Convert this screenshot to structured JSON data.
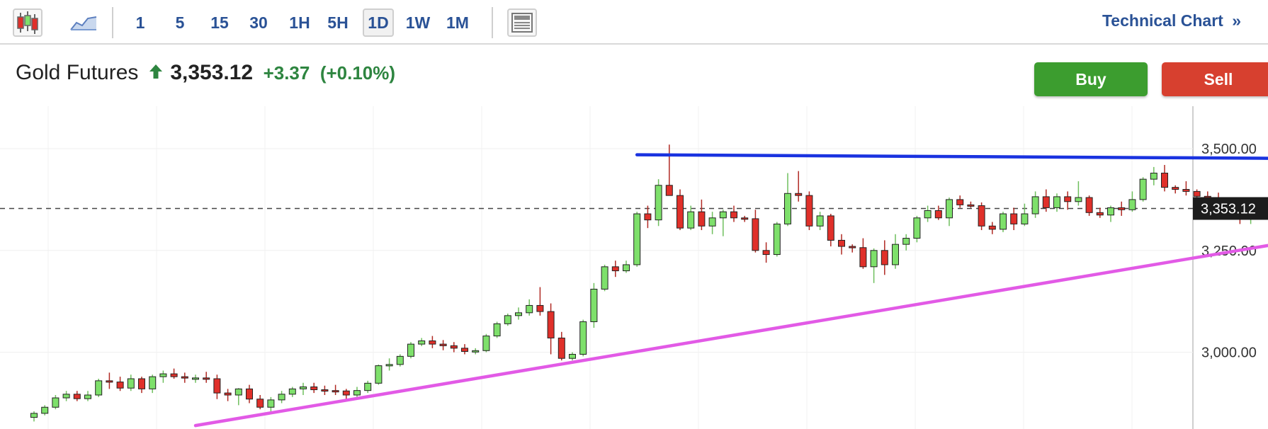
{
  "toolbar": {
    "icons": [
      "candlestick-chart-icon",
      "area-chart-icon",
      "layout-icon"
    ],
    "timeframes": [
      "1",
      "5",
      "15",
      "30",
      "1H",
      "5H",
      "1D",
      "1W",
      "1M"
    ],
    "active_timeframe": "1D",
    "technical_link": "Technical Chart",
    "technical_link_icon": "double-chevron-right-icon"
  },
  "quote": {
    "name": "Gold Futures",
    "direction_icon": "up-arrow-icon",
    "price": "3,353.12",
    "change": "+3.37",
    "change_pct": "(+0.10%)"
  },
  "actions": {
    "buy": "Buy",
    "sell": "Sell"
  },
  "colors": {
    "link": "#2a5296",
    "up": "#2e8540",
    "buy": "#3c9d2f",
    "sell": "#d7402f",
    "candle_up": "#7ee06b",
    "candle_down": "#e0302a",
    "resistance": "#1a33e0",
    "support": "#e25ae6"
  },
  "chart_data": {
    "type": "candlestick",
    "y_ticks": [
      "3,500.00",
      "3,250.00",
      "3,000.00"
    ],
    "y_tick_values": [
      3500,
      3250,
      3000
    ],
    "last_price_label": "3,353.12",
    "last_price": 3353.12,
    "candles": [
      [
        2840,
        2855,
        2830,
        2850
      ],
      [
        2850,
        2870,
        2845,
        2865
      ],
      [
        2865,
        2895,
        2860,
        2888
      ],
      [
        2888,
        2905,
        2880,
        2897
      ],
      [
        2897,
        2905,
        2880,
        2886
      ],
      [
        2886,
        2905,
        2880,
        2895
      ],
      [
        2895,
        2935,
        2890,
        2930
      ],
      [
        2930,
        2950,
        2910,
        2927
      ],
      [
        2927,
        2940,
        2905,
        2912
      ],
      [
        2912,
        2945,
        2905,
        2935
      ],
      [
        2935,
        2940,
        2900,
        2910
      ],
      [
        2910,
        2945,
        2900,
        2940
      ],
      [
        2940,
        2955,
        2925,
        2947
      ],
      [
        2947,
        2960,
        2935,
        2940
      ],
      [
        2940,
        2950,
        2925,
        2937
      ],
      [
        2937,
        2945,
        2925,
        2937
      ],
      [
        2937,
        2952,
        2925,
        2935
      ],
      [
        2935,
        2945,
        2885,
        2900
      ],
      [
        2900,
        2910,
        2880,
        2895
      ],
      [
        2895,
        2912,
        2870,
        2910
      ],
      [
        2910,
        2920,
        2875,
        2885
      ],
      [
        2885,
        2895,
        2860,
        2865
      ],
      [
        2865,
        2890,
        2855,
        2883
      ],
      [
        2883,
        2905,
        2875,
        2897
      ],
      [
        2897,
        2915,
        2890,
        2910
      ],
      [
        2910,
        2925,
        2895,
        2915
      ],
      [
        2915,
        2925,
        2900,
        2908
      ],
      [
        2908,
        2918,
        2895,
        2906
      ],
      [
        2906,
        2920,
        2895,
        2905
      ],
      [
        2905,
        2910,
        2885,
        2895
      ],
      [
        2895,
        2915,
        2890,
        2906
      ],
      [
        2906,
        2930,
        2900,
        2924
      ],
      [
        2924,
        2970,
        2920,
        2967
      ],
      [
        2967,
        2985,
        2955,
        2970
      ],
      [
        2970,
        2995,
        2965,
        2990
      ],
      [
        2990,
        3025,
        2985,
        3020
      ],
      [
        3020,
        3035,
        3015,
        3028
      ],
      [
        3028,
        3040,
        3010,
        3020
      ],
      [
        3020,
        3030,
        3005,
        3016
      ],
      [
        3016,
        3025,
        3000,
        3010
      ],
      [
        3010,
        3020,
        2995,
        3002
      ],
      [
        3002,
        3010,
        2995,
        3004
      ],
      [
        3004,
        3045,
        3000,
        3040
      ],
      [
        3040,
        3075,
        3035,
        3070
      ],
      [
        3070,
        3095,
        3065,
        3090
      ],
      [
        3090,
        3110,
        3080,
        3097
      ],
      [
        3097,
        3130,
        3090,
        3115
      ],
      [
        3115,
        3160,
        3090,
        3100
      ],
      [
        3100,
        3120,
        2995,
        3035
      ],
      [
        3035,
        3050,
        2980,
        2985
      ],
      [
        2985,
        3000,
        2980,
        2995
      ],
      [
        2995,
        3080,
        2990,
        3075
      ],
      [
        3075,
        3170,
        3060,
        3155
      ],
      [
        3155,
        3215,
        3150,
        3210
      ],
      [
        3210,
        3225,
        3185,
        3200
      ],
      [
        3200,
        3225,
        3195,
        3215
      ],
      [
        3215,
        3345,
        3210,
        3340
      ],
      [
        3340,
        3360,
        3305,
        3325
      ],
      [
        3325,
        3425,
        3310,
        3410
      ],
      [
        3410,
        3510,
        3385,
        3385
      ],
      [
        3385,
        3400,
        3300,
        3305
      ],
      [
        3305,
        3360,
        3300,
        3345
      ],
      [
        3345,
        3375,
        3300,
        3310
      ],
      [
        3310,
        3345,
        3290,
        3330
      ],
      [
        3330,
        3350,
        3285,
        3345
      ],
      [
        3345,
        3360,
        3320,
        3330
      ],
      [
        3330,
        3335,
        3320,
        3328
      ],
      [
        3328,
        3350,
        3245,
        3250
      ],
      [
        3250,
        3270,
        3220,
        3240
      ],
      [
        3240,
        3320,
        3235,
        3315
      ],
      [
        3315,
        3440,
        3310,
        3390
      ],
      [
        3390,
        3445,
        3370,
        3385
      ],
      [
        3385,
        3395,
        3300,
        3310
      ],
      [
        3310,
        3345,
        3300,
        3335
      ],
      [
        3335,
        3340,
        3260,
        3275
      ],
      [
        3275,
        3290,
        3240,
        3260
      ],
      [
        3260,
        3265,
        3245,
        3257
      ],
      [
        3257,
        3280,
        3205,
        3210
      ],
      [
        3210,
        3255,
        3170,
        3250
      ],
      [
        3250,
        3275,
        3190,
        3215
      ],
      [
        3215,
        3290,
        3205,
        3265
      ],
      [
        3265,
        3290,
        3250,
        3280
      ],
      [
        3280,
        3335,
        3270,
        3330
      ],
      [
        3330,
        3360,
        3320,
        3348
      ],
      [
        3348,
        3360,
        3325,
        3330
      ],
      [
        3330,
        3380,
        3310,
        3375
      ],
      [
        3375,
        3385,
        3355,
        3362
      ],
      [
        3362,
        3370,
        3355,
        3360
      ],
      [
        3360,
        3368,
        3300,
        3310
      ],
      [
        3310,
        3320,
        3290,
        3302
      ],
      [
        3302,
        3345,
        3295,
        3340
      ],
      [
        3340,
        3355,
        3300,
        3315
      ],
      [
        3315,
        3365,
        3310,
        3340
      ],
      [
        3340,
        3395,
        3330,
        3382
      ],
      [
        3382,
        3400,
        3345,
        3355
      ],
      [
        3355,
        3390,
        3345,
        3382
      ],
      [
        3382,
        3395,
        3350,
        3370
      ],
      [
        3370,
        3420,
        3360,
        3380
      ],
      [
        3380,
        3385,
        3335,
        3343
      ],
      [
        3343,
        3355,
        3330,
        3337
      ],
      [
        3337,
        3360,
        3320,
        3355
      ],
      [
        3355,
        3370,
        3335,
        3350
      ],
      [
        3350,
        3395,
        3345,
        3375
      ],
      [
        3375,
        3430,
        3370,
        3425
      ],
      [
        3425,
        3455,
        3410,
        3440
      ],
      [
        3440,
        3460,
        3395,
        3405
      ],
      [
        3405,
        3410,
        3390,
        3400
      ],
      [
        3400,
        3420,
        3385,
        3395
      ],
      [
        3395,
        3400,
        3375,
        3383
      ],
      [
        3383,
        3395,
        3365,
        3380
      ],
      [
        3380,
        3392,
        3365,
        3372
      ],
      [
        3372,
        3380,
        3340,
        3355
      ],
      [
        3355,
        3365,
        3315,
        3330
      ],
      [
        3330,
        3345,
        3315,
        3337
      ],
      [
        3337,
        3345,
        3330,
        3338
      ],
      [
        3338,
        3345,
        3285,
        3290
      ],
      [
        3290,
        3300,
        3275,
        3283
      ],
      [
        3283,
        3330,
        3275,
        3325
      ],
      [
        3325,
        3360,
        3320,
        3350
      ],
      [
        3350,
        3355,
        3345,
        3353.12
      ]
    ],
    "trendlines": [
      {
        "name": "resistance",
        "color": "#1a33e0",
        "from_index": 56,
        "from": 3485,
        "to_index": 124,
        "to": 3475
      },
      {
        "name": "support",
        "color": "#e25ae6",
        "from_index": 15,
        "from": 2820,
        "to_index": 122,
        "to": 3295
      }
    ],
    "grid": true,
    "last_price_line": "dashed"
  }
}
